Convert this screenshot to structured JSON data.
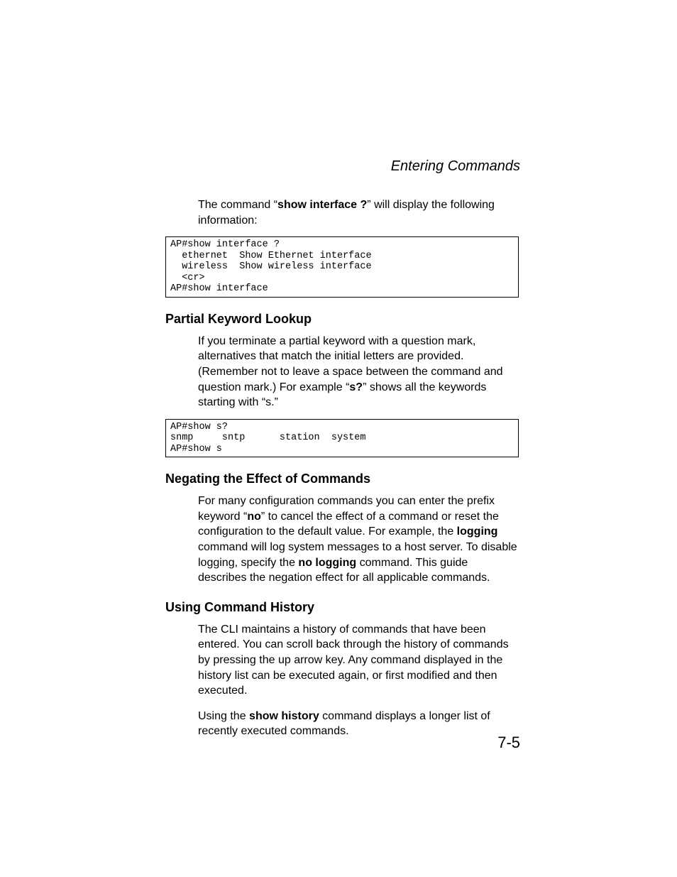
{
  "header": {
    "running_title": "Entering Commands"
  },
  "intro": {
    "text_before": "The command “",
    "cmd": "show interface ?",
    "text_after": "” will display the following information:"
  },
  "codeblock1": "AP#show interface ?\n  ethernet  Show Ethernet interface\n  wireless  Show wireless interface\n  <cr>\nAP#show interface",
  "section_partial": {
    "heading": "Partial Keyword Lookup",
    "para_before": "If you terminate a partial keyword with a question mark, alternatives that match the initial letters are provided. (Remember not to leave a space between the command and question mark.) For example “",
    "cmd": "s?",
    "para_after": "” shows all the keywords starting with “s.”"
  },
  "codeblock2": "AP#show s?\nsnmp     sntp      station  system\nAP#show s",
  "section_negating": {
    "heading": "Negating the Effect of Commands",
    "p1": "For many configuration commands you can enter the prefix keyword “",
    "kw_no": "no",
    "p2": "” to cancel the effect of a command or reset the configuration to the default value. For example, the ",
    "kw_logging": "logging",
    "p3": " command will log system messages to a host server. To disable logging, specify the ",
    "kw_no_logging": "no logging",
    "p4": " command. This guide describes the negation effect for all applicable commands."
  },
  "section_history": {
    "heading": "Using Command History",
    "para1": "The CLI maintains a history of commands that have been entered. You can scroll back through the history of commands by pressing the up arrow key. Any command displayed in the history list can be executed again, or first modified and then executed.",
    "p2a": "Using the ",
    "kw_show_history": "show history",
    "p2b": " command displays a longer list of recently executed commands."
  },
  "footer": {
    "page_number": "7-5"
  }
}
